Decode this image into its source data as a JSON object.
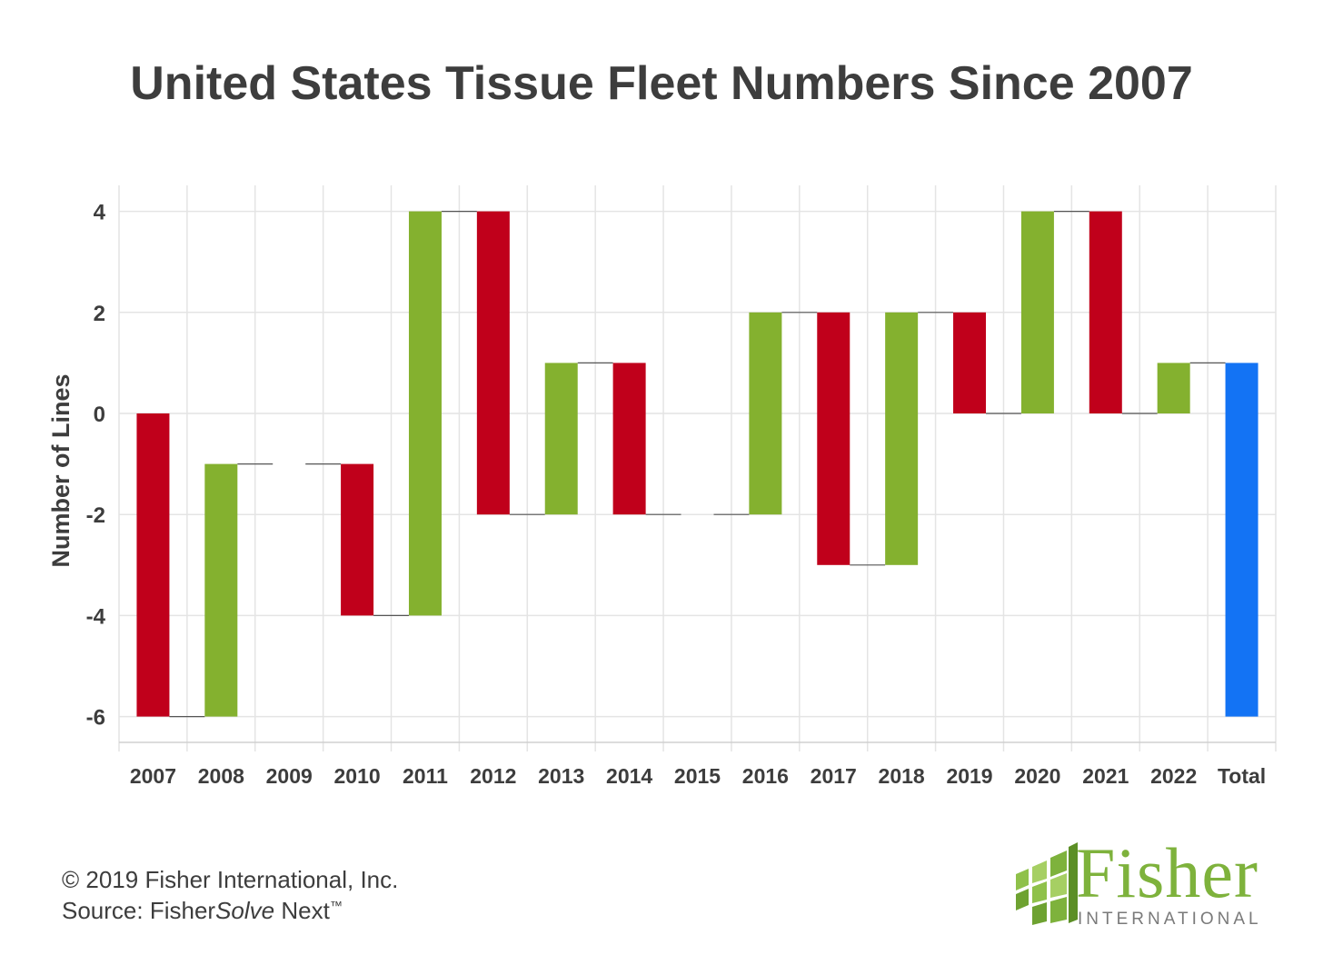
{
  "chart_data": {
    "type": "bar",
    "subtype": "waterfall",
    "title": "United States Tissue Fleet Numbers Since 2007",
    "xlabel": "",
    "ylabel": "Number of Lines",
    "ylim": [
      -6.6,
      4.5
    ],
    "yticks": [
      4,
      2,
      0,
      -2,
      -4,
      -6
    ],
    "categories": [
      "2007",
      "2008",
      "2009",
      "2010",
      "2011",
      "2012",
      "2013",
      "2014",
      "2015",
      "2016",
      "2017",
      "2018",
      "2019",
      "2020",
      "2021",
      "2022",
      "Total"
    ],
    "bars": [
      {
        "category": "2007",
        "start": 0,
        "end": -6,
        "kind": "decrease"
      },
      {
        "category": "2008",
        "start": -6,
        "end": -1,
        "kind": "increase"
      },
      {
        "category": "2009",
        "start": -1,
        "end": -1,
        "kind": "none"
      },
      {
        "category": "2010",
        "start": -1,
        "end": -4,
        "kind": "decrease"
      },
      {
        "category": "2011",
        "start": -4,
        "end": 4,
        "kind": "increase"
      },
      {
        "category": "2012",
        "start": 4,
        "end": -2,
        "kind": "decrease"
      },
      {
        "category": "2013",
        "start": -2,
        "end": 1,
        "kind": "increase"
      },
      {
        "category": "2014",
        "start": 1,
        "end": -2,
        "kind": "decrease"
      },
      {
        "category": "2015",
        "start": -2,
        "end": -2,
        "kind": "none"
      },
      {
        "category": "2016",
        "start": -2,
        "end": 2,
        "kind": "increase"
      },
      {
        "category": "2017",
        "start": 2,
        "end": -3,
        "kind": "decrease"
      },
      {
        "category": "2018",
        "start": -3,
        "end": 2,
        "kind": "increase"
      },
      {
        "category": "2019",
        "start": 2,
        "end": 0,
        "kind": "decrease"
      },
      {
        "category": "2020",
        "start": 0,
        "end": 4,
        "kind": "increase"
      },
      {
        "category": "2021",
        "start": 4,
        "end": 0,
        "kind": "decrease"
      },
      {
        "category": "2022",
        "start": 0,
        "end": 1,
        "kind": "increase"
      },
      {
        "category": "Total",
        "start": -6,
        "end": 1,
        "kind": "total"
      }
    ],
    "connectors": [
      -6,
      -1,
      -1,
      -4,
      4,
      -2,
      1,
      -2,
      -2,
      2,
      -3,
      2,
      0,
      4,
      0,
      1
    ],
    "colors": {
      "increase": "#84b12f",
      "decrease": "#c0001b",
      "total": "#1373f4",
      "grid": "#e4e4e4",
      "axis_text": "#3d3d3d"
    },
    "grid": true,
    "legend": "none"
  },
  "footer": {
    "copyright": "© 2019 Fisher International, Inc.",
    "source_prefix": "Source: Fisher",
    "source_italic": "Solve",
    "source_suffix": " Next",
    "source_mark": "™"
  },
  "logo": {
    "word": "Fisher",
    "sub": "INTERNATIONAL",
    "color": "#7eb23c"
  }
}
